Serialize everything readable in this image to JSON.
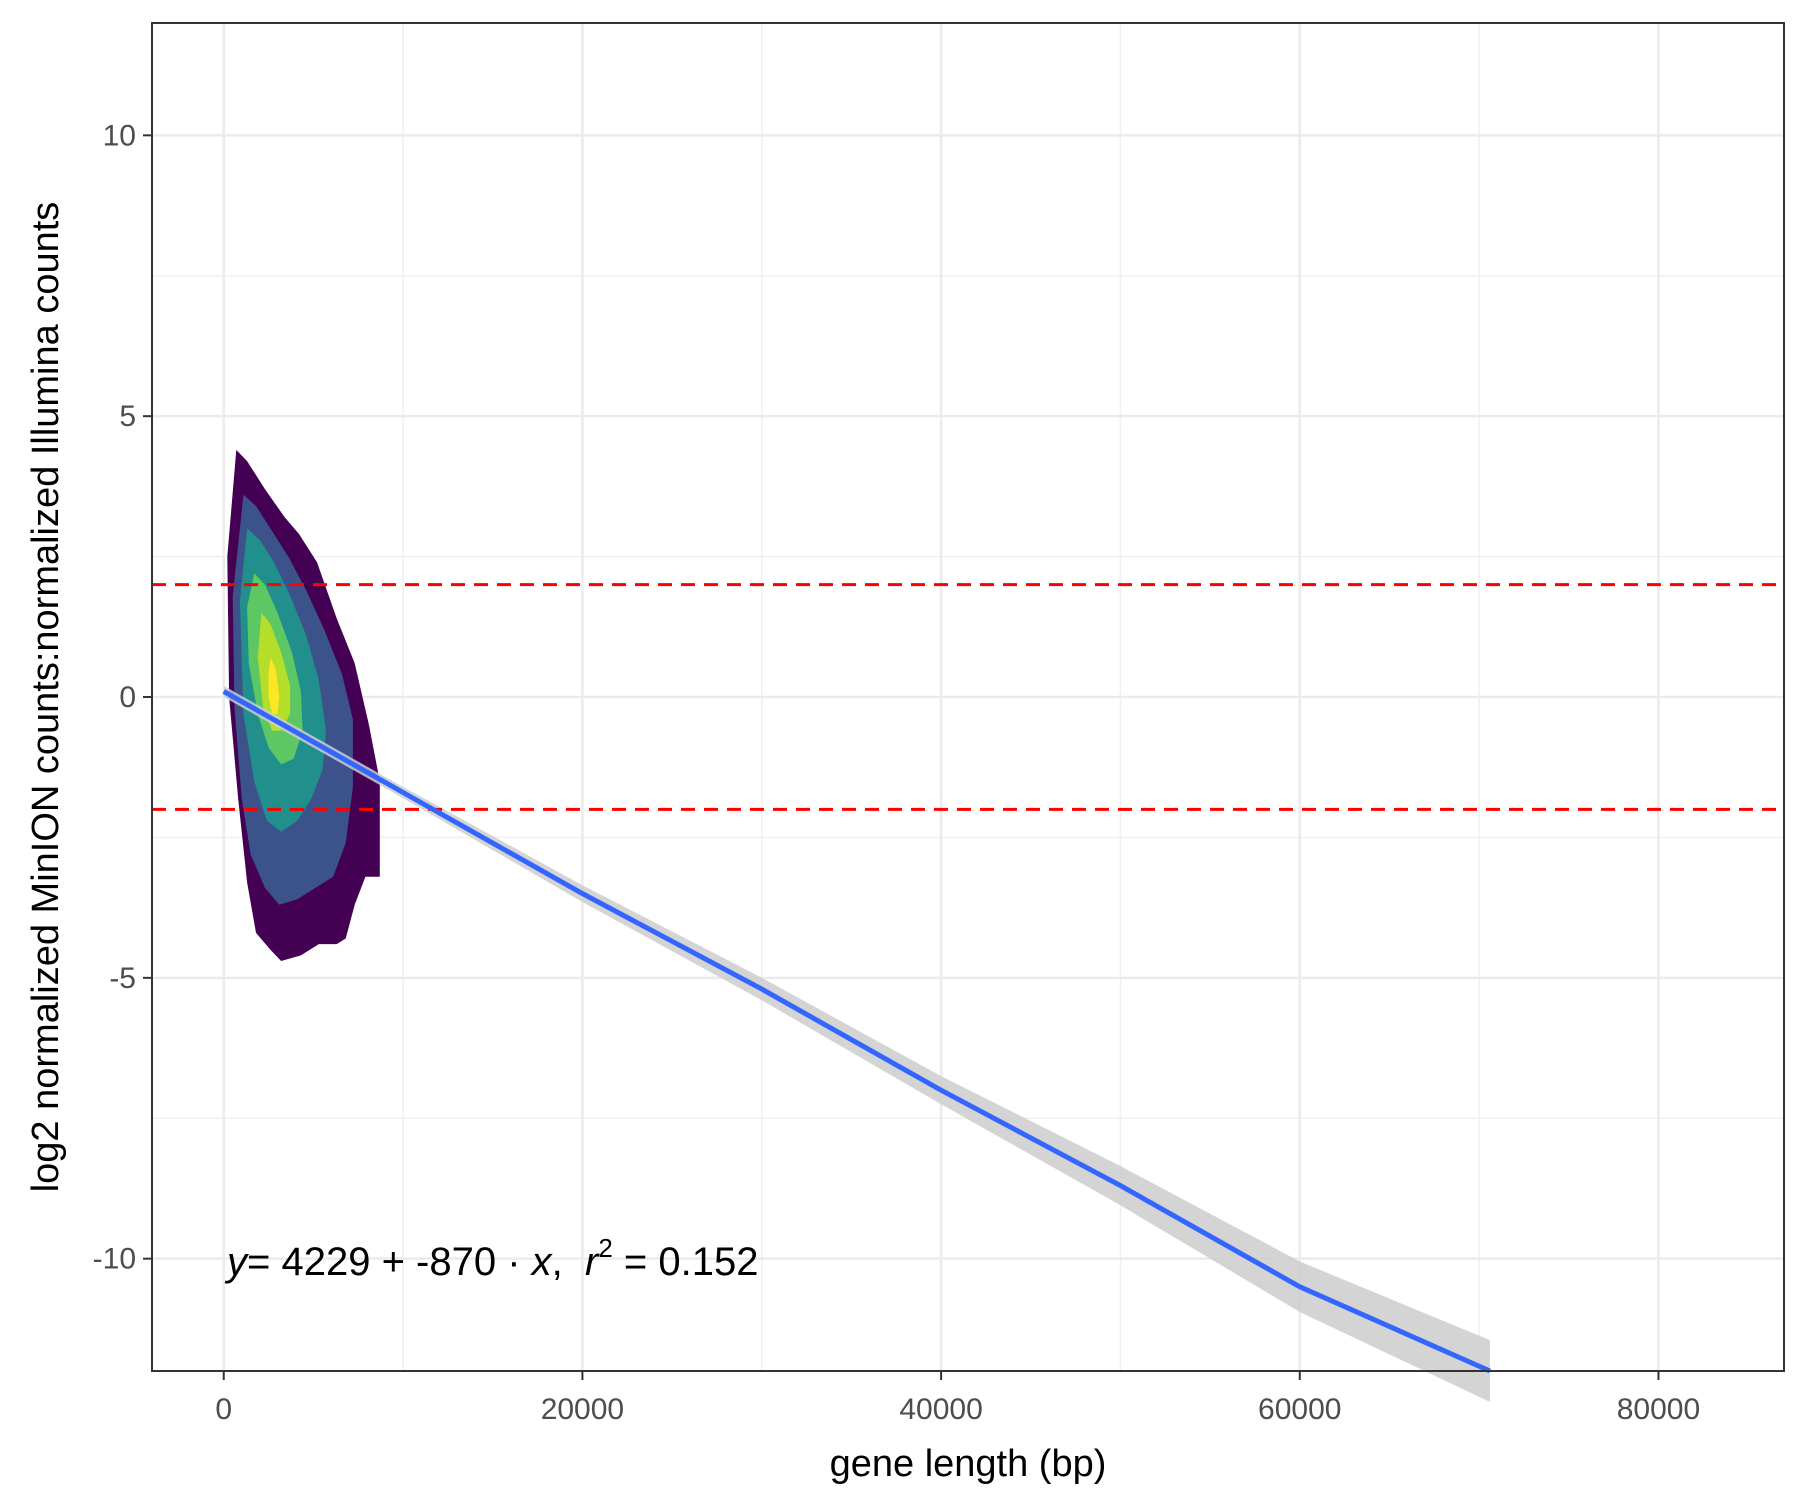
{
  "chart_data": {
    "type": "density_contour_with_regression",
    "xlabel": "gene length (bp)",
    "ylabel": "log2 normalized MinION counts:normalized Illumina counts",
    "xlim": [
      -4000,
      87000
    ],
    "ylim": [
      -12,
      12
    ],
    "x_ticks": [
      0,
      20000,
      40000,
      60000,
      80000
    ],
    "y_ticks": [
      -10,
      -5,
      0,
      5,
      10
    ],
    "grid": true,
    "reference_lines": [
      {
        "axis": "y",
        "value": 2,
        "style": "dashed",
        "color": "#ff0000"
      },
      {
        "axis": "y",
        "value": -2,
        "style": "dashed",
        "color": "#ff0000"
      }
    ],
    "regression": {
      "x": [
        0,
        10000,
        20000,
        30000,
        40000,
        50000,
        60000,
        70600
      ],
      "y": [
        0.1,
        -1.7,
        -3.5,
        -5.2,
        -7.0,
        -8.7,
        -10.5,
        -12.0
      ],
      "line_color": "#3366ff",
      "ci_color": "#cccccc",
      "ci_halfwidth": [
        0.1,
        0.1,
        0.15,
        0.2,
        0.25,
        0.35,
        0.45,
        0.55
      ]
    },
    "density_levels": [
      {
        "level": 1,
        "color": "#440154",
        "x": [
          700,
          1300,
          2300,
          3400,
          4200,
          5200,
          6300,
          7300,
          8100,
          8700,
          8700,
          7900,
          7300,
          6800,
          6300,
          5300,
          4300,
          3200,
          2600,
          1800,
          1300,
          800,
          300,
          200
        ],
        "y": [
          4.4,
          4.2,
          3.7,
          3.2,
          2.9,
          2.4,
          1.4,
          0.6,
          -0.5,
          -1.5,
          -3.2,
          -3.2,
          -3.7,
          -4.3,
          -4.4,
          -4.4,
          -4.6,
          -4.7,
          -4.5,
          -4.2,
          -3.3,
          -1.8,
          0.0,
          2.5
        ]
      },
      {
        "level": 2,
        "color": "#3b528b",
        "x": [
          1100,
          1800,
          2600,
          3600,
          4600,
          5600,
          6600,
          7200,
          7200,
          6800,
          6100,
          5100,
          4100,
          3100,
          2300,
          1500,
          1000,
          600,
          500
        ],
        "y": [
          3.6,
          3.4,
          3.0,
          2.5,
          1.9,
          1.2,
          0.4,
          -0.4,
          -1.6,
          -2.6,
          -3.2,
          -3.4,
          -3.6,
          -3.7,
          -3.4,
          -2.8,
          -1.8,
          -0.2,
          1.8
        ]
      },
      {
        "level": 3,
        "color": "#21908d",
        "x": [
          1300,
          2000,
          2800,
          3700,
          4600,
          5300,
          5700,
          5500,
          4900,
          4100,
          3200,
          2400,
          1700,
          1100,
          900
        ],
        "y": [
          3.0,
          2.8,
          2.4,
          1.8,
          1.1,
          0.3,
          -0.6,
          -1.3,
          -1.8,
          -2.2,
          -2.4,
          -2.2,
          -1.5,
          -0.3,
          1.7
        ]
      },
      {
        "level": 4,
        "color": "#5dc863",
        "x": [
          1700,
          2300,
          3000,
          3800,
          4300,
          4400,
          3900,
          3200,
          2500,
          1900,
          1400,
          1300
        ],
        "y": [
          2.2,
          2.0,
          1.5,
          0.8,
          0.1,
          -0.6,
          -1.1,
          -1.2,
          -0.9,
          -0.3,
          0.6,
          1.6
        ]
      },
      {
        "level": 5,
        "color": "#b5de2b",
        "x": [
          2100,
          2600,
          3200,
          3700,
          3700,
          3200,
          2700,
          2200,
          1900
        ],
        "y": [
          1.5,
          1.3,
          0.8,
          0.2,
          -0.3,
          -0.6,
          -0.6,
          -0.2,
          0.7
        ]
      },
      {
        "level": 6,
        "color": "#fde725",
        "x": [
          2600,
          2900,
          3100,
          3000,
          2700,
          2500,
          2500
        ],
        "y": [
          0.7,
          0.5,
          0.0,
          -0.3,
          -0.3,
          0.0,
          0.4
        ]
      }
    ],
    "annotation": {
      "y_sym": "y",
      "eq": "= 4229 + -870 · ",
      "x_sym": "x",
      "sep": ",  ",
      "r_sym": "r",
      "sup": "2",
      "r2": " = 0.152"
    }
  }
}
